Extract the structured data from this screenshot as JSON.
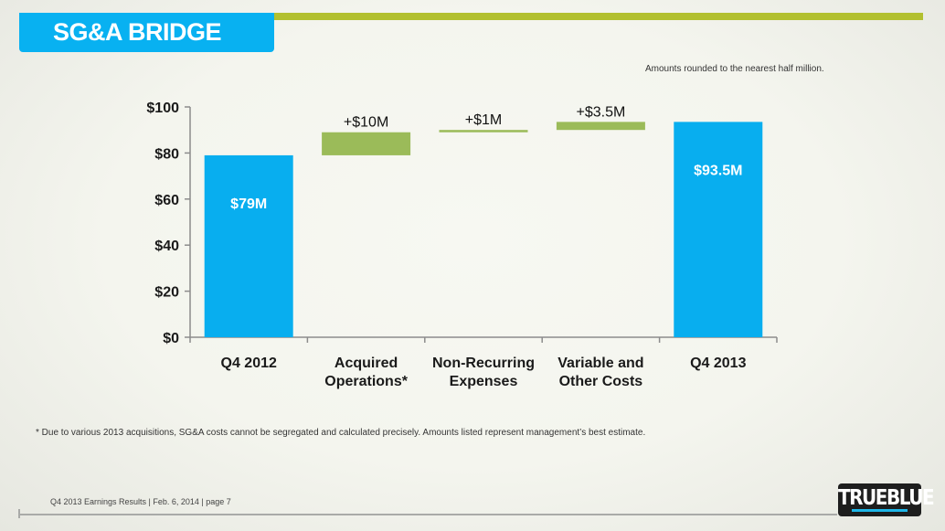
{
  "header": {
    "title": "SG&A BRIDGE",
    "note": "Amounts rounded to the nearest half million."
  },
  "footnote": "* Due to various 2013 acquisitions, SG&A costs cannot be segregated and calculated precisely. Amounts listed represent management’s best estimate.",
  "footer": {
    "text": "Q4 2013 Earnings Results | Feb. 6, 2014  | page 7",
    "logo_text": "TRUEBLUE"
  },
  "colors": {
    "total": "#08aeef",
    "increase": "#9bbb59",
    "accent": "#b2c02f"
  },
  "chart_data": {
    "type": "bar",
    "subtype": "waterfall",
    "title": "SG&A BRIDGE",
    "xlabel": "",
    "ylabel": "",
    "ylim": [
      0,
      100
    ],
    "yticks": [
      0,
      20,
      40,
      60,
      80,
      100
    ],
    "ytick_labels": [
      "$0",
      "$20",
      "$40",
      "$60",
      "$80",
      "$100"
    ],
    "grid": false,
    "categories": [
      [
        "Q4 2012"
      ],
      [
        "Acquired",
        "Operations*"
      ],
      [
        "Non-Recurring",
        "Expenses"
      ],
      [
        "Variable and",
        "Other Costs"
      ],
      [
        "Q4 2013"
      ]
    ],
    "bars": [
      {
        "kind": "total",
        "start": 0,
        "end": 79,
        "label": "$79M"
      },
      {
        "kind": "increase",
        "start": 79,
        "end": 89,
        "label": "+$10M"
      },
      {
        "kind": "increase",
        "start": 89,
        "end": 90,
        "label": "+$1M"
      },
      {
        "kind": "increase",
        "start": 90,
        "end": 93.5,
        "label": "+$3.5M"
      },
      {
        "kind": "total",
        "start": 0,
        "end": 93.5,
        "label": "$93.5M"
      }
    ]
  }
}
